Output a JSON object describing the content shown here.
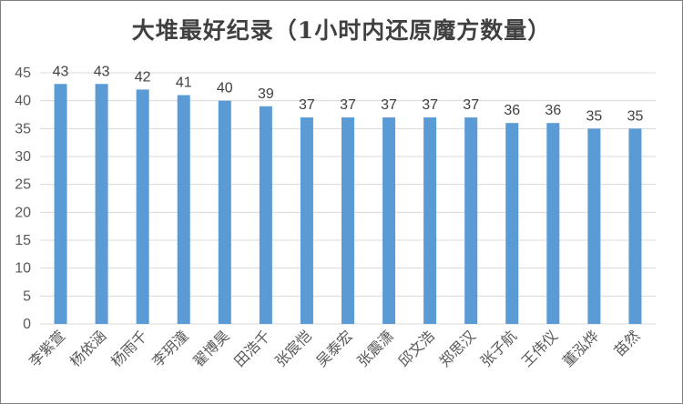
{
  "chart_data": {
    "type": "bar",
    "title": "大堆最好纪录（1小时内还原魔方数量）",
    "categories": [
      "李紫萱",
      "杨依涵",
      "杨雨千",
      "李玥潼",
      "翟博昊",
      "田浩千",
      "张宸恺",
      "吴泰宏",
      "张震潇",
      "邱文浩",
      "郑思汉",
      "张子航",
      "王伟仪",
      "董泓烨",
      "苗然"
    ],
    "values": [
      43,
      43,
      42,
      41,
      40,
      39,
      37,
      37,
      37,
      37,
      37,
      36,
      36,
      35,
      35
    ],
    "ylim": [
      0,
      45
    ],
    "yticks": [
      0,
      5,
      10,
      15,
      20,
      25,
      30,
      35,
      40,
      45
    ],
    "grid": true,
    "data_labels": true,
    "bar_color": "#5b9bd5",
    "grid_color": "#d9d9d9"
  }
}
